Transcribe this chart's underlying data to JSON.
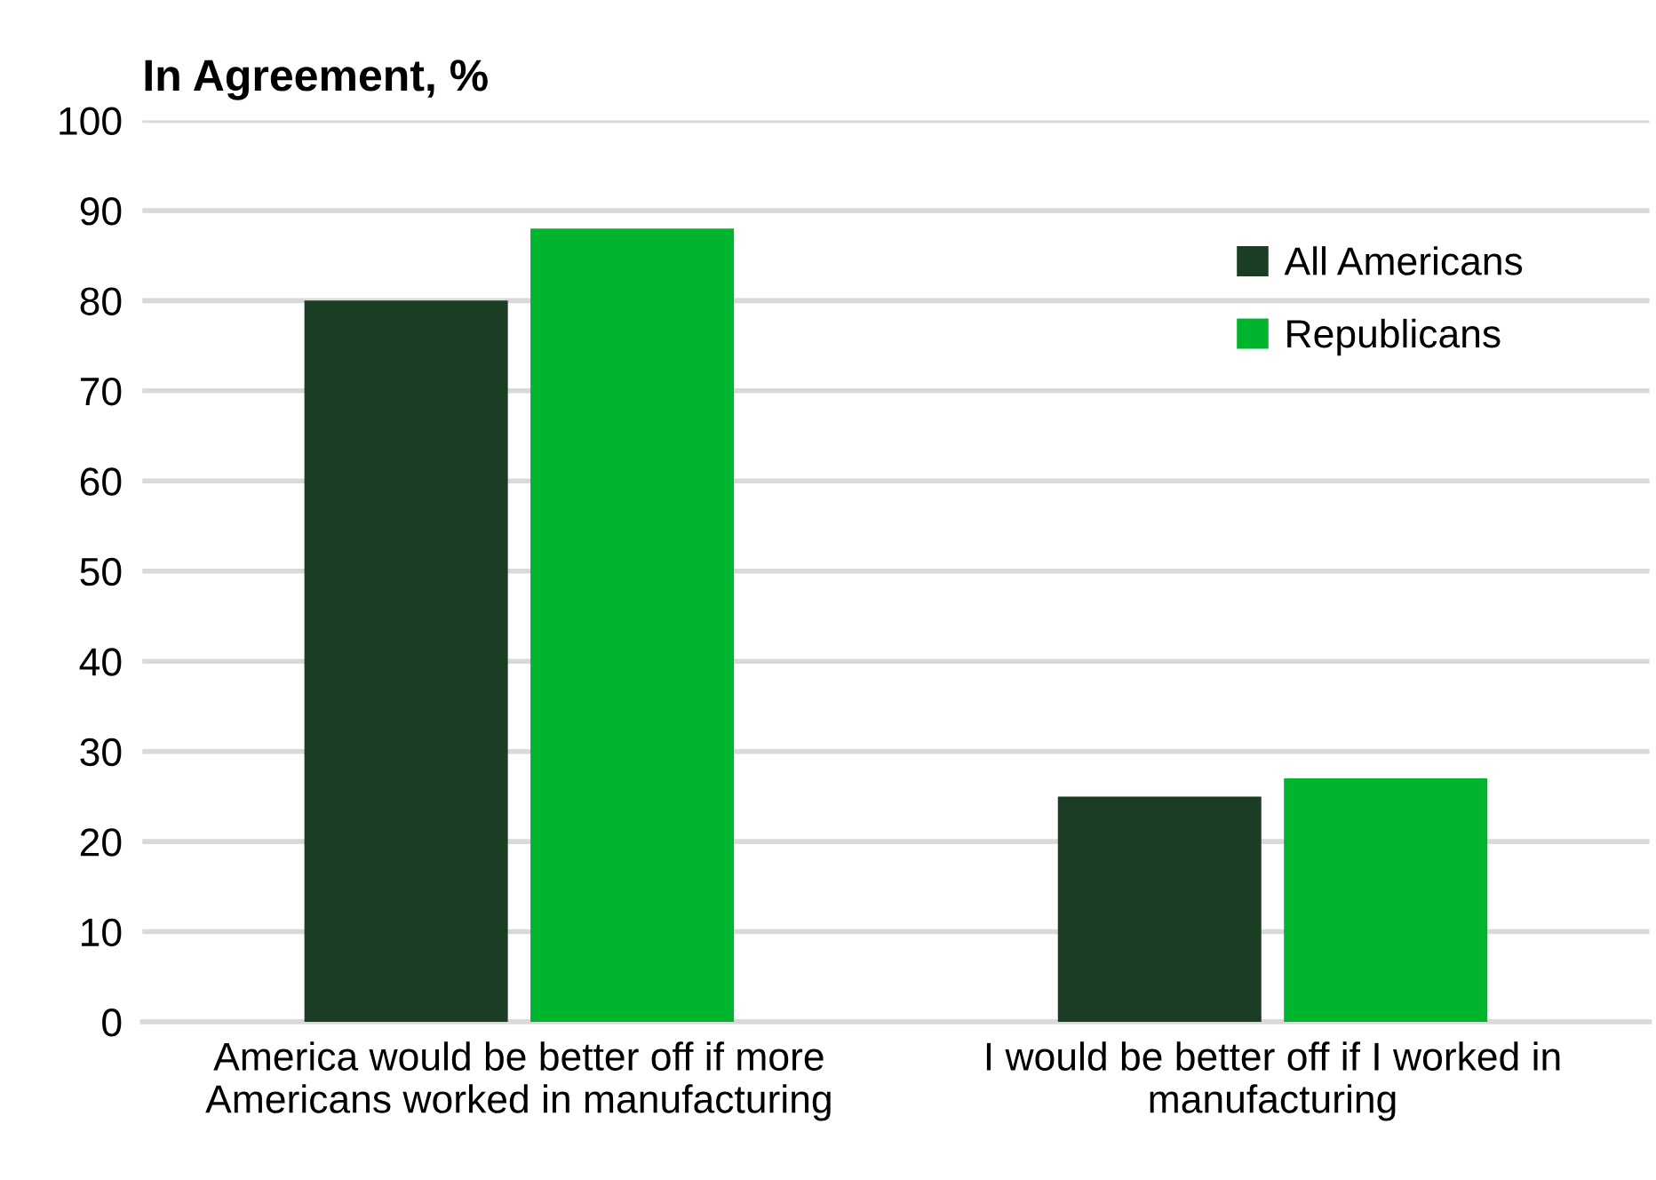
{
  "chart_data": {
    "type": "bar",
    "title": "In Agreement, %",
    "categories": [
      "America would be better off if more\nAmericans worked in manufacturing",
      "I would be better off if I worked in\nmanufacturing"
    ],
    "series": [
      {
        "name": "All Americans",
        "color": "#1a3d24",
        "values": [
          80,
          25
        ]
      },
      {
        "name": "Republicans",
        "color": "#00b52e",
        "values": [
          88,
          27
        ]
      }
    ],
    "ylim": [
      0,
      100
    ],
    "yticks": [
      0,
      10,
      20,
      30,
      40,
      50,
      60,
      70,
      80,
      90,
      100
    ],
    "grid": "y",
    "legend": "top right"
  }
}
